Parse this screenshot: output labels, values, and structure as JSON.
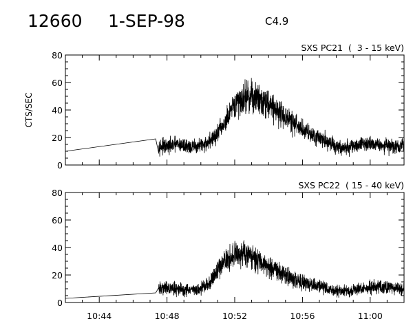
{
  "header": {
    "event_id": "12660",
    "date": "1-SEP-98",
    "flare_class": "C4.9"
  },
  "chart_data": [
    {
      "type": "line",
      "title": "SXS PC21  (  3 - 15 keV)",
      "ylabel": "CTS/SEC",
      "xlabel": "",
      "xlim": [
        "10:42",
        "11:02"
      ],
      "ylim": [
        0,
        80
      ],
      "yticks": [
        0,
        20,
        40,
        60,
        80
      ],
      "xticks": [
        "10:44",
        "10:48",
        "10:52",
        "10:56",
        "11:00"
      ],
      "grid": false,
      "series": [
        {
          "x": [
            "10:42:00",
            "10:47:20",
            "10:47:30",
            "10:48:00",
            "10:48:30",
            "10:49:00",
            "10:49:30",
            "10:50:00",
            "10:50:30",
            "10:51:00",
            "10:51:30",
            "10:52:00",
            "10:52:30",
            "10:53:00",
            "10:53:30",
            "10:54:00",
            "10:54:30",
            "10:55:00",
            "10:55:30",
            "10:56:00",
            "10:56:30",
            "10:57:00",
            "10:57:30",
            "10:58:00",
            "10:58:30",
            "10:59:00",
            "10:59:30",
            "11:00:00",
            "11:00:30",
            "11:01:00",
            "11:01:30",
            "11:02:00"
          ],
          "values": [
            10,
            19,
            14,
            13,
            15,
            14,
            13,
            14,
            17,
            23,
            32,
            43,
            49,
            50,
            48,
            45,
            40,
            35,
            30,
            26,
            23,
            20,
            17,
            13,
            12,
            14,
            15,
            16,
            15,
            14,
            13,
            14
          ]
        }
      ]
    },
    {
      "type": "line",
      "title": "SXS PC22  ( 15 - 40 keV)",
      "ylabel": "",
      "xlabel": "",
      "xlim": [
        "10:42",
        "11:02"
      ],
      "ylim": [
        0,
        80
      ],
      "yticks": [
        0,
        20,
        40,
        60,
        80
      ],
      "xticks": [
        "10:44",
        "10:48",
        "10:52",
        "10:56",
        "11:00"
      ],
      "xticklabels": [
        "10:44",
        "10:48",
        "10:52",
        "10:56",
        "11:00"
      ],
      "grid": false,
      "series": [
        {
          "x": [
            "10:42:00",
            "10:47:20",
            "10:47:30",
            "10:48:00",
            "10:48:30",
            "10:49:00",
            "10:49:30",
            "10:50:00",
            "10:50:30",
            "10:51:00",
            "10:51:30",
            "10:52:00",
            "10:52:30",
            "10:53:00",
            "10:53:30",
            "10:54:00",
            "10:54:30",
            "10:55:00",
            "10:55:30",
            "10:56:00",
            "10:56:30",
            "10:57:00",
            "10:57:30",
            "10:58:00",
            "10:58:30",
            "10:59:00",
            "10:59:30",
            "11:00:00",
            "11:00:30",
            "11:01:00",
            "11:01:30",
            "11:02:00"
          ],
          "values": [
            3,
            7,
            10,
            11,
            10,
            9,
            9,
            10,
            14,
            24,
            31,
            34,
            36,
            34,
            30,
            26,
            23,
            20,
            17,
            15,
            13,
            12,
            10,
            8,
            8,
            9,
            10,
            11,
            12,
            11,
            10,
            10
          ]
        }
      ]
    }
  ]
}
